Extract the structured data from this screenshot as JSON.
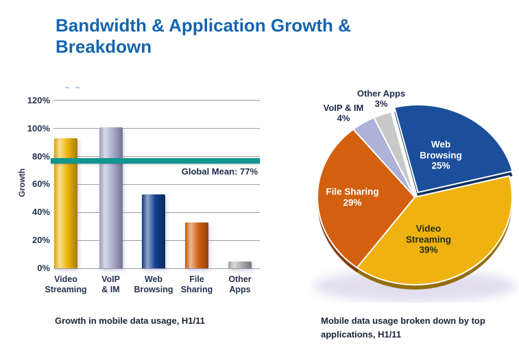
{
  "title": {
    "lines": [
      "Bandwidth & Application Growth &",
      "Breakdown"
    ],
    "color": "#1564AE"
  },
  "captions": {
    "bar": "Growth in mobile data usage, H1/11",
    "pie": "Mobile data usage broken down by top applications, H1/11"
  },
  "chart_data": [
    {
      "type": "bar",
      "caption": "Growth in mobile data usage, H1/11",
      "ylabel": "Growth",
      "ylim": [
        0,
        120
      ],
      "grid": true,
      "yticks": [
        "0%",
        "20%",
        "40%",
        "60%",
        "80%",
        "100%",
        "120%"
      ],
      "categories": [
        "Video Streaming",
        "VoIP & IM",
        "Web Browsing",
        "File Sharing",
        "Other Apps"
      ],
      "category_lines": [
        [
          "Video",
          "Streaming"
        ],
        [
          "VoIP",
          "& IM"
        ],
        [
          "Web",
          "Browsing"
        ],
        [
          "File",
          "Sharing"
        ],
        [
          "Other",
          "Apps"
        ]
      ],
      "values": [
        93,
        101,
        53,
        33,
        5
      ],
      "bar_colors": [
        "#EFB30A",
        "#A9ACCC",
        "#123E8C",
        "#D2600F",
        "#ACACAC"
      ],
      "mean_line": {
        "value": 77,
        "label": "Global Mean: 77%",
        "color": "#0E968F"
      }
    },
    {
      "type": "pie",
      "caption": "Mobile data usage broken down by top applications, H1/11",
      "start_angle_deg": -14,
      "legend": "none",
      "slices": [
        {
          "label": "Web Browsing",
          "value": 25,
          "color": "#1B4F9B",
          "text_color": "#FFFFFF",
          "label_lines": [
            "Web",
            "Browsing",
            "25%"
          ],
          "placement": "inside",
          "exploded": true
        },
        {
          "label": "Video Streaming",
          "value": 39,
          "color": "#EFB211",
          "text_color": "#223015",
          "label_lines": [
            "Video",
            "Streaming",
            "39%"
          ],
          "placement": "inside",
          "exploded": false
        },
        {
          "label": "File Sharing",
          "value": 29,
          "color": "#D2600F",
          "text_color": "#FFFFFF",
          "label_lines": [
            "File Sharing",
            "29%"
          ],
          "placement": "inside",
          "exploded": false
        },
        {
          "label": "VoIP & IM",
          "value": 4,
          "color": "#AEB2D8",
          "text_color": "#1C2A49",
          "label_lines": [
            "VoIP & IM",
            "4%"
          ],
          "placement": "outside",
          "exploded": false
        },
        {
          "label": "Other Apps",
          "value": 3,
          "color": "#C9C9C9",
          "text_color": "#1C2A49",
          "label_lines": [
            "Other Apps",
            "3%"
          ],
          "placement": "outside",
          "exploded": false
        }
      ]
    }
  ]
}
